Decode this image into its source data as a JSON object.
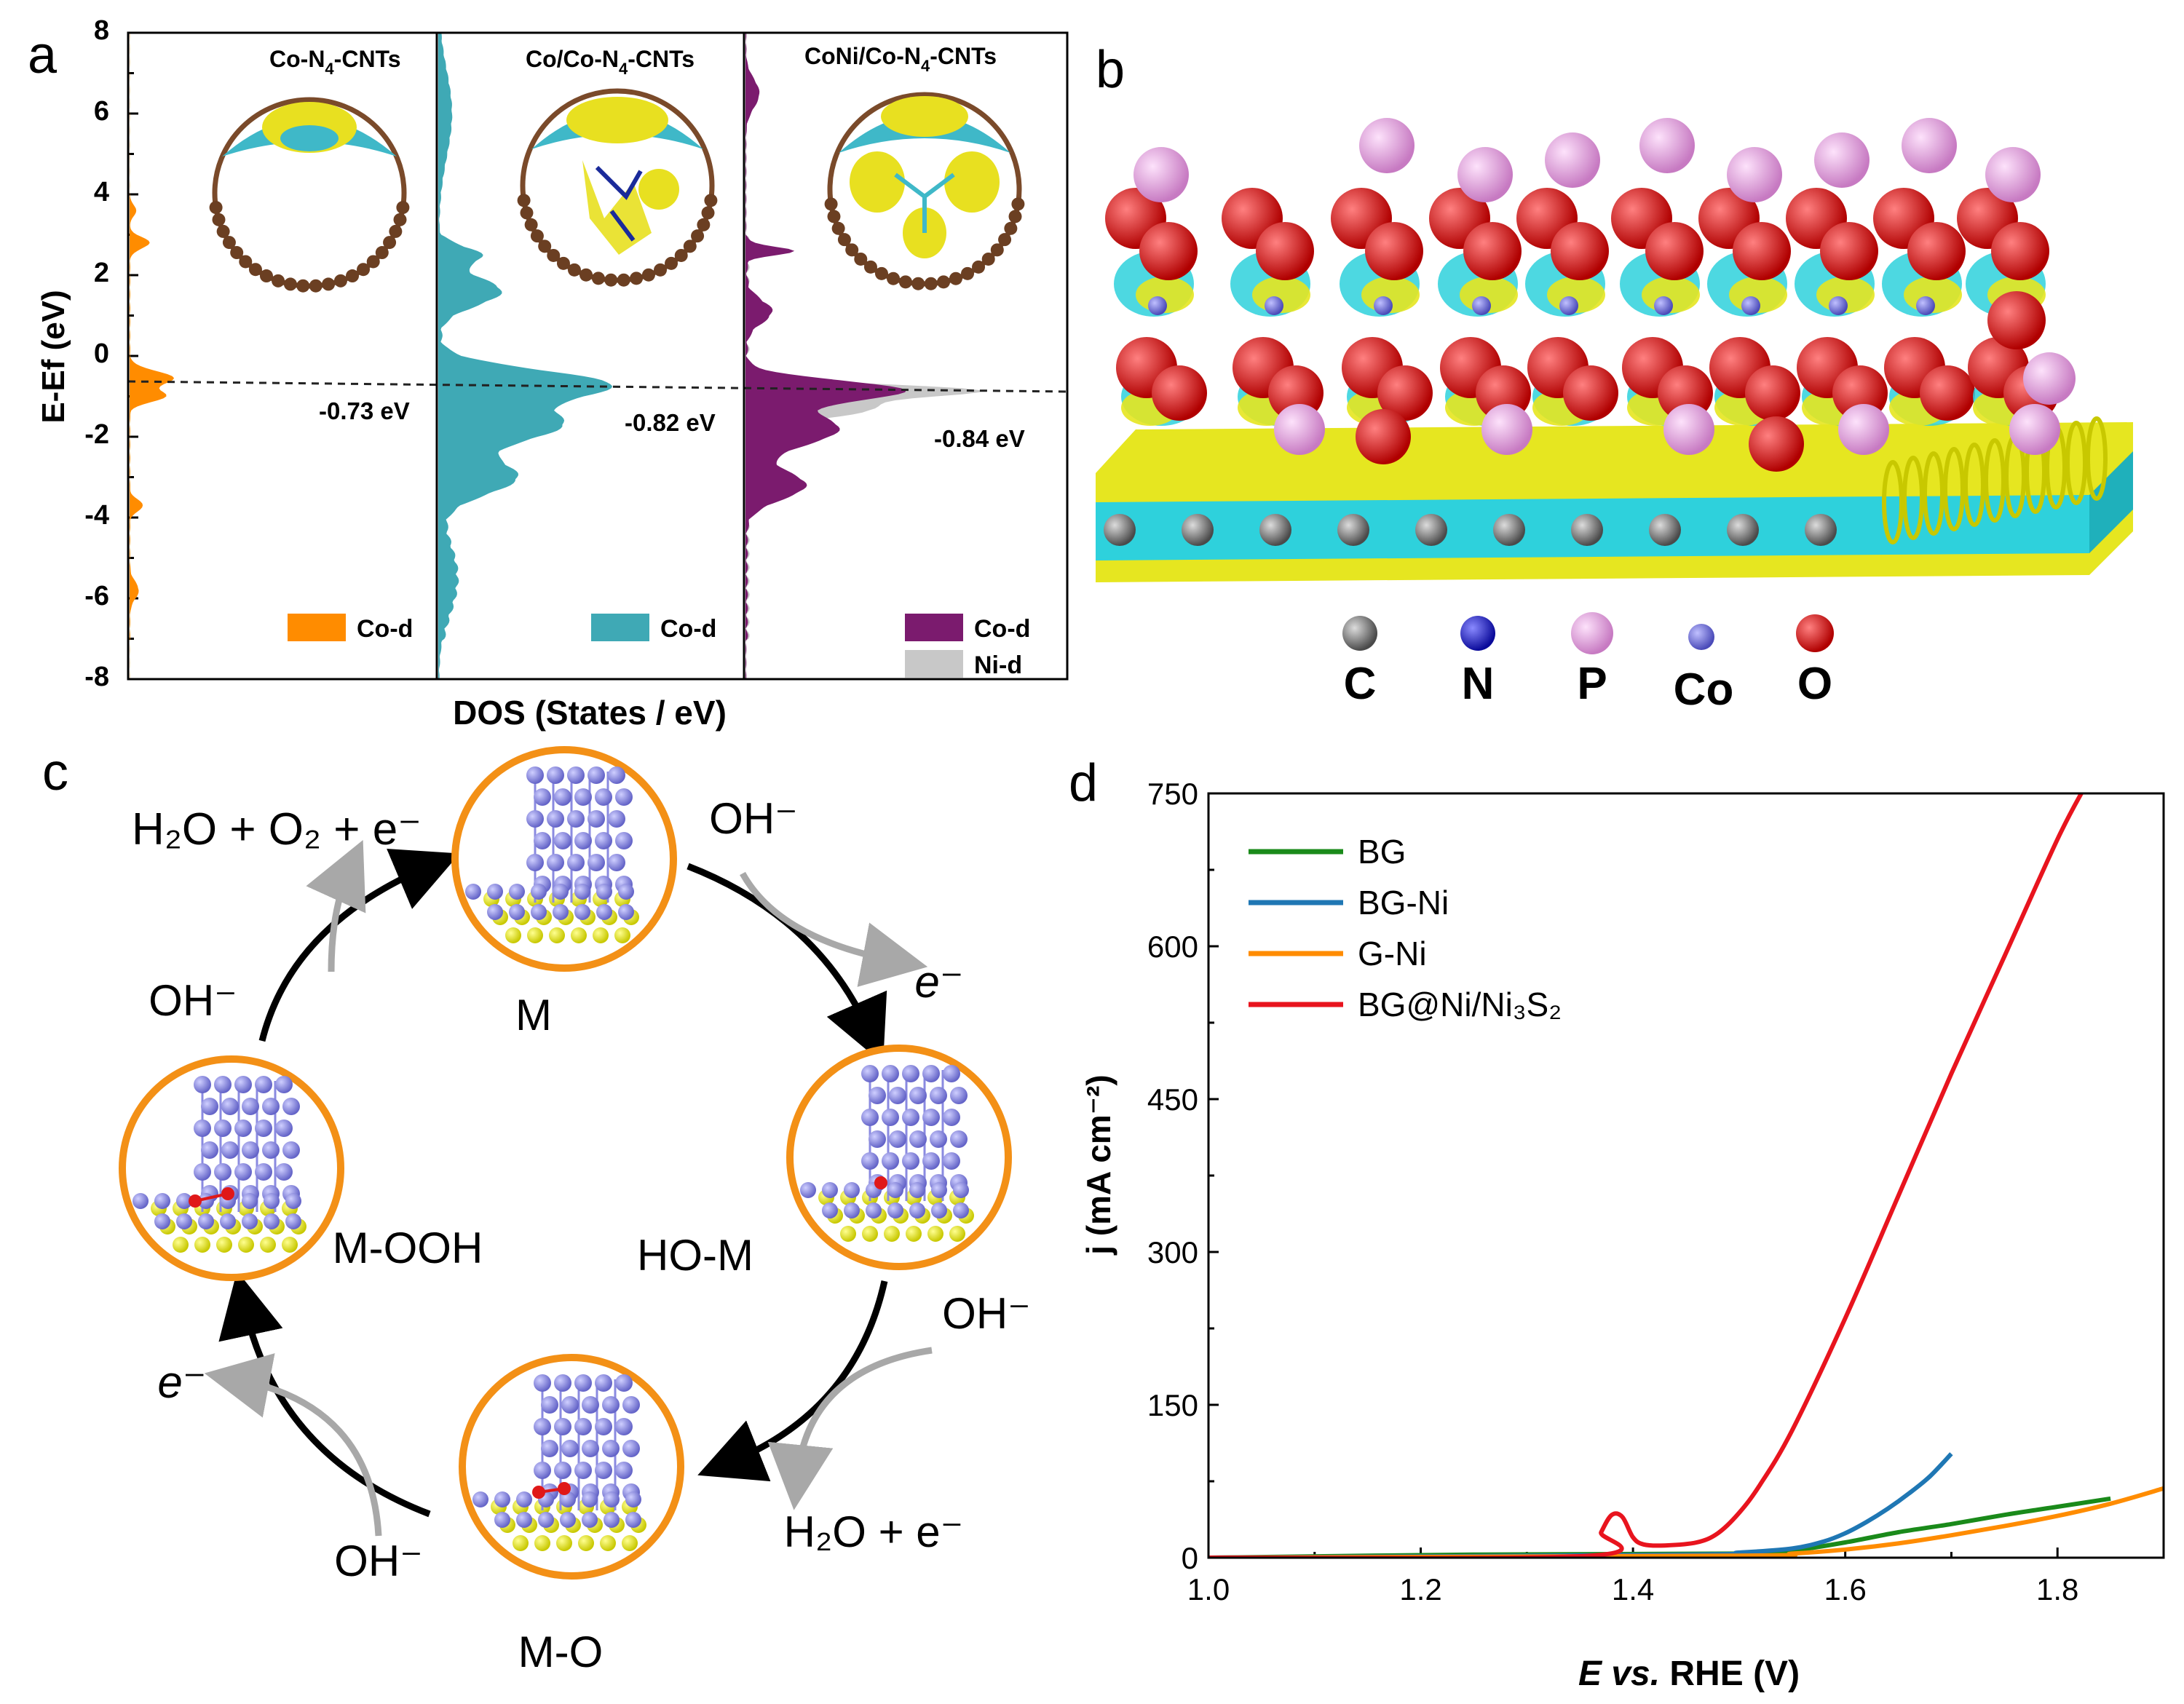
{
  "panel_labels": {
    "a": "a",
    "b": "b",
    "c": "c",
    "d": "d"
  },
  "panel_a": {
    "ylabel": "E-Ef (eV)",
    "xlabel": "DOS (States / eV)",
    "yticks": [
      "8",
      "6",
      "4",
      "2",
      "0",
      "-2",
      "-4",
      "-6",
      "-8"
    ],
    "subpanels": [
      {
        "title_main": "Co-N",
        "title_sub": "4",
        "title_tail": "-CNTs",
        "fermi_label": "-0.73 eV",
        "fermi_value": -0.73,
        "legend": [
          "Co-d"
        ]
      },
      {
        "title_main": "Co/Co-N",
        "title_sub": "4",
        "title_tail": "-CNTs",
        "fermi_label": "-0.82 eV",
        "fermi_value": -0.82,
        "legend": [
          "Co-d"
        ]
      },
      {
        "title_main": "CoNi/Co-N",
        "title_sub": "4",
        "title_tail": "-CNTs",
        "fermi_label": "-0.84 eV",
        "fermi_value": -0.84,
        "legend": [
          "Co-d",
          "Ni-d"
        ]
      }
    ],
    "colors": {
      "co1": "#ff8c00",
      "co2": "#3fa9b5",
      "co3": "#7b1b6e",
      "ni": "#c8c8c8"
    }
  },
  "panel_b": {
    "atom_legend": [
      {
        "label": "C",
        "color": "#6e6e6e"
      },
      {
        "label": "N",
        "color": "#1414c8"
      },
      {
        "label": "P",
        "color": "#e7a0e2"
      },
      {
        "label": "Co",
        "color": "#6b6bd8"
      },
      {
        "label": "O",
        "color": "#e01818"
      }
    ]
  },
  "panel_c": {
    "states": {
      "top": "M",
      "right": "HO-M",
      "bottom": "M-O",
      "left": "M-OOH"
    },
    "species": {
      "oh_top_right": "OH⁻",
      "e_top_right": "e⁻",
      "oh_right": "OH⁻",
      "h2o_e_bottom": "H₂O + e⁻",
      "oh_bottom_left": "OH⁻",
      "e_left": "e⁻",
      "oh_left": "OH⁻",
      "h2o_o2_e_top": "H₂O + O₂ + e⁻"
    }
  },
  "chart_data": {
    "type": "line",
    "xlabel": "E vs. RHE (V)",
    "ylabel": "j (mA cm⁻²)",
    "xlim": [
      1.0,
      1.9
    ],
    "ylim": [
      0,
      750
    ],
    "xticks": [
      "1.0",
      "1.2",
      "1.4",
      "1.6",
      "1.8"
    ],
    "yticks": [
      "0",
      "150",
      "300",
      "450",
      "600",
      "750"
    ],
    "legend_position": "top-left",
    "series": [
      {
        "name": "BG",
        "color": "#1a8a1a",
        "x": [
          1.0,
          1.25,
          1.5,
          1.55,
          1.6,
          1.65,
          1.7,
          1.75,
          1.8,
          1.85
        ],
        "y": [
          0,
          3,
          4,
          7,
          15,
          25,
          33,
          42,
          50,
          58
        ]
      },
      {
        "name": "BG-Ni",
        "color": "#1f77b4",
        "x": [
          1.0,
          1.45,
          1.5,
          1.55,
          1.58,
          1.6,
          1.62,
          1.64,
          1.66,
          1.68,
          1.7
        ],
        "y": [
          0,
          3,
          5,
          9,
          16,
          24,
          35,
          48,
          63,
          80,
          102
        ]
      },
      {
        "name": "G-Ni",
        "color": "#ff8c00",
        "x": [
          1.0,
          1.5,
          1.55,
          1.6,
          1.65,
          1.7,
          1.75,
          1.8,
          1.85,
          1.9
        ],
        "y": [
          0,
          2,
          4,
          8,
          14,
          22,
          31,
          41,
          53,
          68
        ]
      },
      {
        "name": "BG@Ni/Ni₃S₂",
        "color": "#e8141e",
        "x": [
          1.0,
          1.36,
          1.37,
          1.38,
          1.39,
          1.4,
          1.41,
          1.43,
          1.46,
          1.48,
          1.5,
          1.52,
          1.55,
          1.6,
          1.65,
          1.7,
          1.75,
          1.8,
          1.825
        ],
        "y": [
          0,
          2,
          25,
          42,
          40,
          20,
          13,
          12,
          15,
          24,
          44,
          72,
          125,
          235,
          355,
          475,
          590,
          705,
          755
        ]
      }
    ]
  }
}
